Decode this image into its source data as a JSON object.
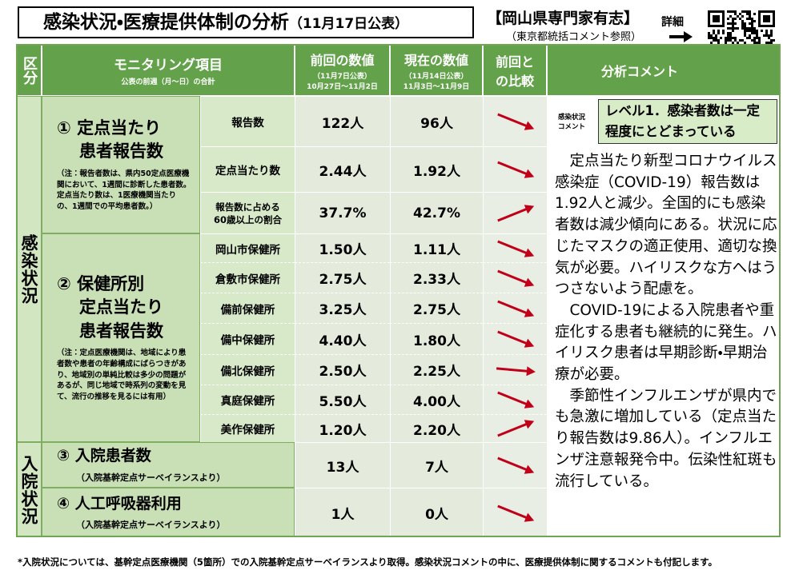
{
  "header": {
    "title": "感染状況・医療提供体制の分析",
    "date": "（11月17日公表）",
    "source": "【岡山県専門家有志】",
    "source_note": "（東京都統括コメント参照）",
    "detail": "詳細"
  },
  "columns": {
    "category": "区分",
    "item": "モニタリング項目",
    "item_note": "公表の前週（月～日）の合計",
    "previous": "前回の数値",
    "previous_date": "（11月7日公表）",
    "previous_range": "10月27日～11月2日",
    "current": "現在の数値",
    "current_date": "（11月14日公表）",
    "current_range": "11月3日～11月9日",
    "compare": [
      "前回と",
      "の比較"
    ],
    "comment": "分析コメント"
  },
  "sections": [
    {
      "category": "感染状況",
      "items": [
        {
          "label": [
            "① 定点当たり",
            "患者報告数"
          ],
          "note": "（注：報告者数は、県内50定点医療機関において、1週間に診断した患者数。定点当たり数は、1医療機関当たりの、1週間での平均患者数。）",
          "rows": [
            {
              "name": [
                "報告数"
              ],
              "previous": "122人",
              "current": "96人"
            },
            {
              "name": [
                "定点当たり数"
              ],
              "previous": "2.44人",
              "current": "1.92人"
            },
            {
              "name": [
                "報告数に占める",
                "60歳以上の割合"
              ],
              "previous": "37.7%",
              "current": "42.7%"
            }
          ]
        },
        {
          "label": [
            "② 保健所別",
            "定点当たり",
            "患者報告数"
          ],
          "note": "（注：定点医療機関は、地域により患者数や患者の年齢構成にばらつきがあり、地域別の単純比較は多少の問題があるが、同じ地域で時系列の変動を見て、流行の推移を見るには有用）",
          "rows": [
            {
              "name": [
                "岡山市保健所"
              ],
              "previous": "1.50人",
              "current": "1.11人"
            },
            {
              "name": [
                "倉敷市保健所"
              ],
              "previous": "2.75人",
              "current": "2.33人"
            },
            {
              "name": [
                "備前保健所"
              ],
              "previous": "3.25人",
              "current": "2.75人"
            },
            {
              "name": [
                "備中保健所"
              ],
              "previous": "4.40人",
              "current": "1.80人"
            },
            {
              "name": [
                "備北保健所"
              ],
              "previous": "2.50人",
              "current": "2.25人"
            },
            {
              "name": [
                "真庭保健所"
              ],
              "previous": "5.50人",
              "current": "4.00人"
            },
            {
              "name": [
                "美作保健所"
              ],
              "previous": "1.20人",
              "current": "2.20人"
            }
          ]
        }
      ]
    },
    {
      "category": "入院状況",
      "items": [
        {
          "label": [
            "③ 入院患者数"
          ],
          "note": "（入院基幹定点サーベイランスより）",
          "rows": [
            {
              "previous": "13人",
              "current": "7人"
            }
          ]
        },
        {
          "label": [
            "④ 人工呼吸器利用"
          ],
          "note": "（入院基幹定点サーベイランスより）",
          "rows": [
            {
              "previous": "1人",
              "current": "0人"
            }
          ]
        }
      ]
    }
  ],
  "comment": {
    "label": [
      "感染状況",
      "コメント"
    ],
    "level": "レベル1．感染者数は一定程度にとどまっている",
    "paragraphs": [
      "定点当たり新型コロナウイルス感染症（COVID-19）報告数は1.92人と減少。全国的にも感染者数は減少傾向にある。状況に応じたマスクの適正使用、適切な換気が必要。ハイリスクな方へはうつさないよう配慮を。",
      "COVID-19による入院患者や重症化する患者も継続的に発生。ハイリスク患者は早期診断・早期治療が必要。",
      "季節性インフルエンザが県内でも急激に増加している（定点当たり報告数は9.86人）。インフルエンザ注意報発令中。伝染性紅斑も流行している。"
    ]
  },
  "footnote": "*入院状況については、基幹定点医療機関（5箇所）での入院基幹定点サーベイランスより取得。感染状況コメントの中に、医療提供体制に関するコメントも付記します。"
}
